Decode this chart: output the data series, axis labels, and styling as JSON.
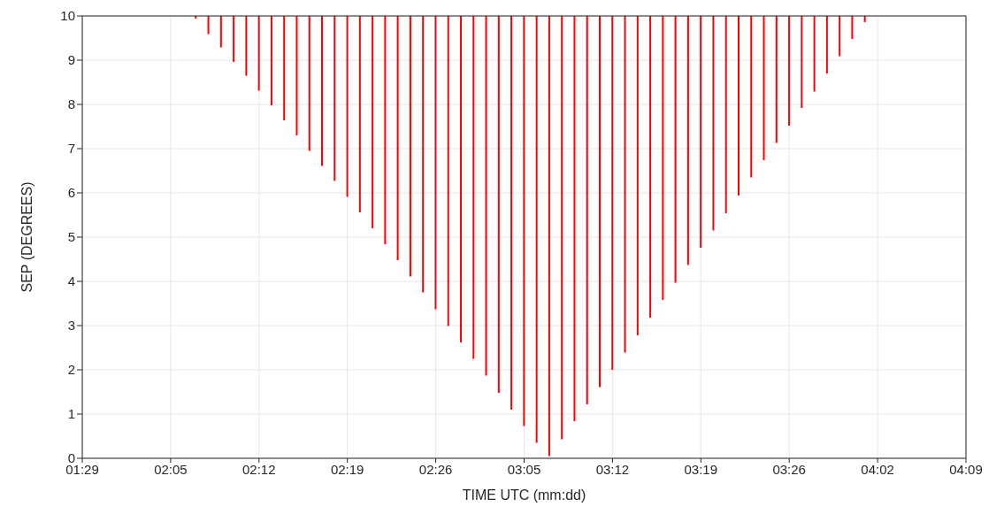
{
  "chart_data": {
    "type": "bar",
    "xlabel": "TIME UTC (mm:dd)",
    "ylabel": "SEP (DEGREES)",
    "categories": [
      "01:29",
      null,
      null,
      null,
      null,
      null,
      null,
      "02:05",
      null,
      null,
      null,
      null,
      null,
      null,
      "02:12",
      null,
      null,
      null,
      null,
      null,
      null,
      "02:19",
      null,
      null,
      null,
      null,
      null,
      null,
      "02:26",
      null,
      null,
      null,
      null,
      null,
      null,
      "03:05",
      null,
      null,
      null,
      null,
      null,
      null,
      "03:12",
      null,
      null,
      null,
      null,
      null,
      null,
      "03:19",
      null,
      null,
      null,
      null,
      null,
      null,
      "03:26",
      null,
      null,
      null,
      null,
      null,
      null,
      "04:02",
      null,
      null,
      null,
      null,
      null,
      null,
      "04:09"
    ],
    "base": [
      null,
      null,
      null,
      null,
      null,
      null,
      null,
      null,
      null,
      9.94,
      9.59,
      9.29,
      8.96,
      8.65,
      8.31,
      7.98,
      7.64,
      7.3,
      6.95,
      6.61,
      6.27,
      5.91,
      5.56,
      5.2,
      4.84,
      4.48,
      4.11,
      3.75,
      3.37,
      2.99,
      2.62,
      2.25,
      1.87,
      1.48,
      1.1,
      0.73,
      0.35,
      0.05,
      0.43,
      0.84,
      1.22,
      1.61,
      2.0,
      2.39,
      2.78,
      3.18,
      3.58,
      3.97,
      4.37,
      4.76,
      5.15,
      5.54,
      5.94,
      6.35,
      6.74,
      7.13,
      7.52,
      7.92,
      8.29,
      8.7,
      9.09,
      9.48,
      9.86,
      null,
      null,
      null,
      null,
      null,
      null,
      null,
      null
    ],
    "values": [
      null,
      null,
      null,
      null,
      null,
      null,
      null,
      null,
      null,
      0.06,
      0.41,
      0.71,
      1.04,
      1.35,
      1.69,
      2.02,
      2.36,
      2.7,
      3.05,
      3.39,
      3.73,
      4.09,
      4.44,
      4.8,
      5.16,
      5.52,
      5.89,
      6.25,
      6.63,
      7.01,
      7.38,
      7.75,
      8.13,
      8.52,
      8.9,
      9.27,
      9.65,
      9.95,
      9.57,
      9.16,
      8.78,
      8.39,
      8.0,
      7.61,
      7.22,
      6.82,
      6.42,
      6.03,
      5.63,
      5.24,
      4.85,
      4.46,
      4.06,
      3.65,
      3.26,
      2.87,
      2.48,
      2.08,
      1.71,
      1.3,
      0.91,
      0.52,
      0.14,
      null,
      null,
      null,
      null,
      null,
      null,
      null,
      null
    ],
    "color": "#ff0000",
    "ylim": [
      0,
      10
    ],
    "yticks": [
      0,
      1,
      2,
      3,
      4,
      5,
      6,
      7,
      8,
      9,
      10
    ],
    "grid": true
  }
}
